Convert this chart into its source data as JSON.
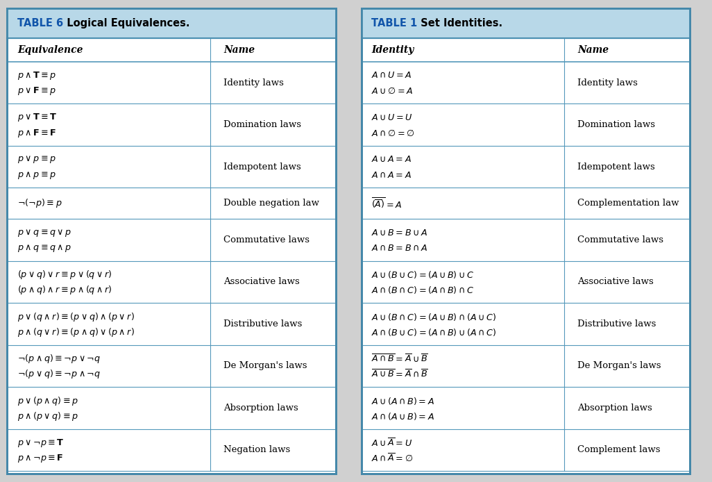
{
  "table6_title_num": "TABLE 6",
  "table6_title_rest": "  Logical Equivalences.",
  "table6_col1_header": "Equivalence",
  "table6_col2_header": "Name",
  "table6_rows": [
    [
      "$p \\wedge \\mathbf{T} \\equiv p$\n$p \\vee \\mathbf{F} \\equiv p$",
      "Identity laws"
    ],
    [
      "$p \\vee \\mathbf{T} \\equiv \\mathbf{T}$\n$p \\wedge \\mathbf{F} \\equiv \\mathbf{F}$",
      "Domination laws"
    ],
    [
      "$p \\vee p \\equiv p$\n$p \\wedge p \\equiv p$",
      "Idempotent laws"
    ],
    [
      "$\\neg(\\neg p) \\equiv p$",
      "Double negation law"
    ],
    [
      "$p \\vee q \\equiv q \\vee p$\n$p \\wedge q \\equiv q \\wedge p$",
      "Commutative laws"
    ],
    [
      "$(p \\vee q) \\vee r \\equiv p \\vee (q \\vee r)$\n$(p \\wedge q) \\wedge r \\equiv p \\wedge (q \\wedge r)$",
      "Associative laws"
    ],
    [
      "$p \\vee (q \\wedge r) \\equiv (p \\vee q) \\wedge (p \\vee r)$\n$p \\wedge (q \\vee r) \\equiv (p \\wedge q) \\vee (p \\wedge r)$",
      "Distributive laws"
    ],
    [
      "$\\neg(p \\wedge q) \\equiv \\neg p \\vee \\neg q$\n$\\neg(p \\vee q) \\equiv \\neg p \\wedge \\neg q$",
      "De Morgan's laws"
    ],
    [
      "$p \\vee (p \\wedge q) \\equiv p$\n$p \\wedge (p \\vee q) \\equiv p$",
      "Absorption laws"
    ],
    [
      "$p \\vee \\neg p \\equiv \\mathbf{T}$\n$p \\wedge \\neg p \\equiv \\mathbf{F}$",
      "Negation laws"
    ]
  ],
  "table1_title_num": "TABLE 1",
  "table1_title_rest": "  Set Identities.",
  "table1_col1_header": "Identity",
  "table1_col2_header": "Name",
  "table1_rows": [
    [
      "$A \\cap U = A$\n$A \\cup \\emptyset = A$",
      "Identity laws"
    ],
    [
      "$A \\cup U = U$\n$A \\cap \\emptyset = \\emptyset$",
      "Domination laws"
    ],
    [
      "$A \\cup A = A$\n$A \\cap A = A$",
      "Idempotent laws"
    ],
    [
      "$\\overline{(\\overline{A})} = A$",
      "Complementation law"
    ],
    [
      "$A \\cup B = B \\cup A$\n$A \\cap B = B \\cap A$",
      "Commutative laws"
    ],
    [
      "$A \\cup (B \\cup C) = (A \\cup B) \\cup C$\n$A \\cap (B \\cap C) = (A \\cap B) \\cap C$",
      "Associative laws"
    ],
    [
      "$A \\cup (B \\cap C) = (A \\cup B) \\cap (A \\cup C)$\n$A \\cap (B \\cup C) = (A \\cap B) \\cup (A \\cap C)$",
      "Distributive laws"
    ],
    [
      "$\\overline{A \\cap B} = \\overline{A} \\cup \\overline{B}$\n$\\overline{A \\cup B} = \\overline{A} \\cap \\overline{B}$",
      "De Morgan's laws"
    ],
    [
      "$A \\cup (A \\cap B) = A$\n$A \\cap (A \\cup B) = A$",
      "Absorption laws"
    ],
    [
      "$A \\cup \\overline{A} = U$\n$A \\cap \\overline{A} = \\emptyset$",
      "Complement laws"
    ]
  ],
  "title_bg": "#b8d8e8",
  "border_color": "#5599bb",
  "outer_border_color": "#4488aa",
  "text_color": "#000000",
  "title_num_color": "#1155aa",
  "bg_color": "#d0d0d0"
}
